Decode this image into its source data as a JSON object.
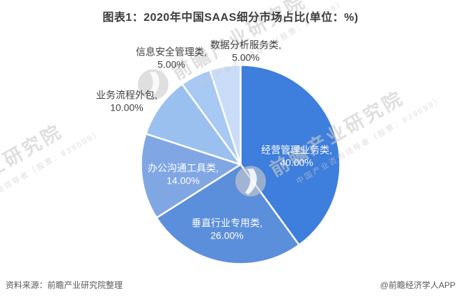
{
  "title": "图表1：2020年中国SAAS细分市场占比(单位：%)",
  "footer": {
    "source": "资料来源：前瞻产业研究院整理",
    "credit": "@前瞻经济学人APP"
  },
  "watermark": {
    "brand": "前瞻产业研究院",
    "tagline": "中国产业咨询领导者（股票：839599）"
  },
  "chart_data": {
    "type": "pie",
    "title": "图表1：2020年中国SAAS细分市场占比(单位：%)",
    "unit": "%",
    "start_angle_deg": 0,
    "direction": "clockwise",
    "legend": "none",
    "background": "#ffffff",
    "value_format": "0.00%",
    "slices": [
      {
        "label": "经营管理业务类",
        "value": 40.0,
        "color": "#3E7EDC",
        "label_placement": "inside"
      },
      {
        "label": "垂直行业专用类",
        "value": 26.0,
        "color": "#5C8FDB",
        "label_placement": "inside"
      },
      {
        "label": "办公沟通工具类",
        "value": 14.0,
        "color": "#80A7E4",
        "label_placement": "inside"
      },
      {
        "label": "业务流程外包",
        "value": 10.0,
        "color": "#9AC0F0",
        "label_placement": "outside"
      },
      {
        "label": "信息安全管理类",
        "value": 5.0,
        "color": "#A7C9F3",
        "label_placement": "outside"
      },
      {
        "label": "数据分析服务类",
        "value": 5.0,
        "color": "#C9DDF8",
        "label_placement": "outside"
      }
    ]
  }
}
